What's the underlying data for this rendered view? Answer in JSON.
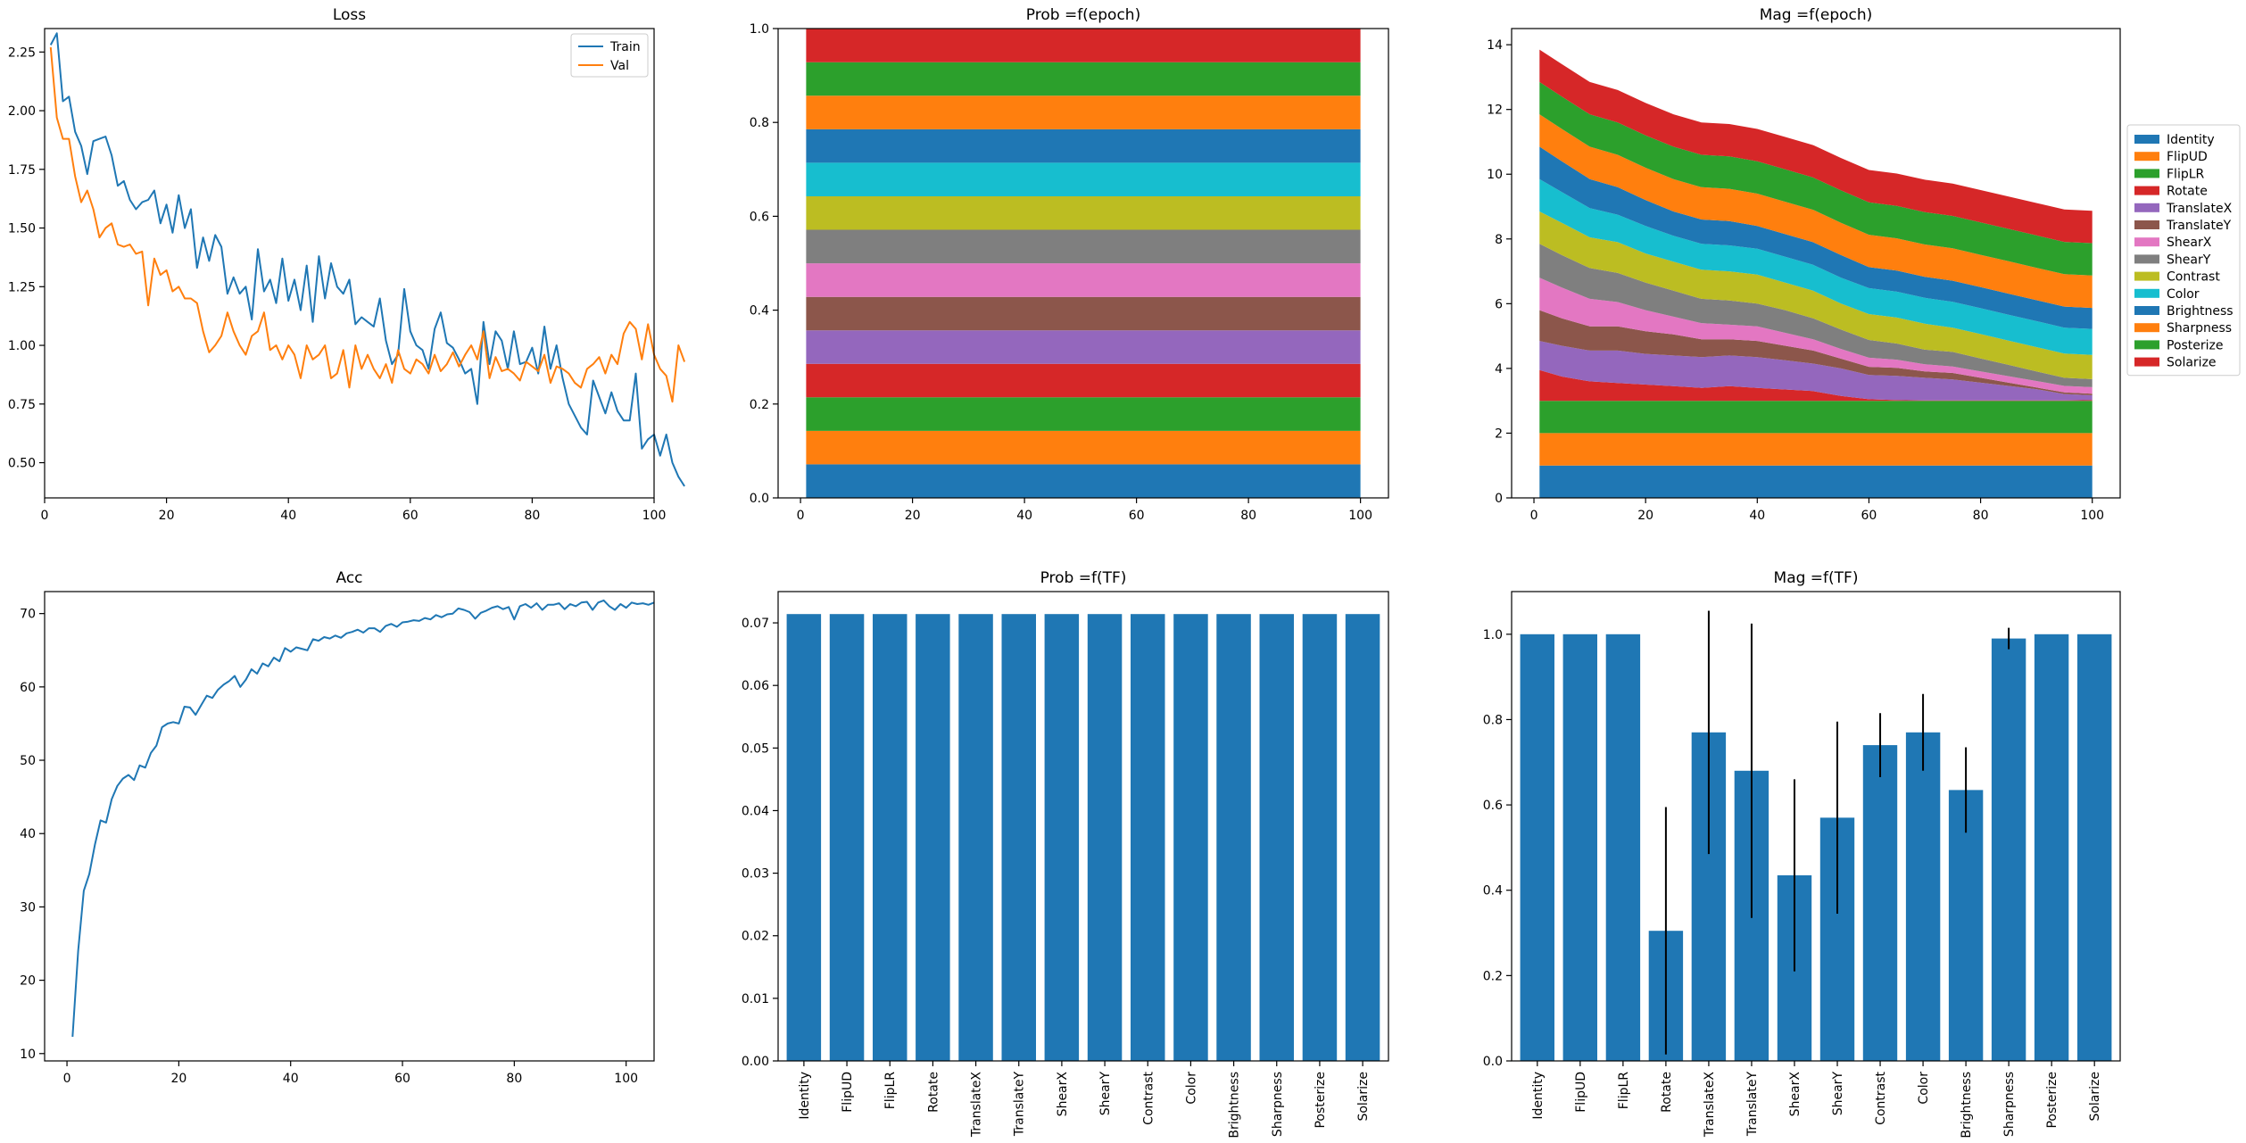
{
  "chart_data": [
    {
      "id": "loss",
      "type": "line",
      "title": "Loss",
      "xlim": [
        0,
        100
      ],
      "ylim": [
        0.35,
        2.35
      ],
      "xticks": [
        0,
        20,
        40,
        60,
        80,
        100
      ],
      "yticks": [
        0.5,
        0.75,
        1.0,
        1.25,
        1.5,
        1.75,
        2.0,
        2.25
      ],
      "yticklabels": [
        "0.50",
        "0.75",
        "1.00",
        "1.25",
        "1.50",
        "1.75",
        "2.00",
        "2.25"
      ],
      "legend": "top-right",
      "series": [
        {
          "name": "Train",
          "color": "#1f77b4",
          "values": [
            2.28,
            2.33,
            2.04,
            2.06,
            1.91,
            1.85,
            1.73,
            1.87,
            1.88,
            1.89,
            1.81,
            1.68,
            1.7,
            1.62,
            1.58,
            1.61,
            1.62,
            1.66,
            1.52,
            1.6,
            1.48,
            1.64,
            1.5,
            1.58,
            1.33,
            1.46,
            1.36,
            1.47,
            1.42,
            1.22,
            1.29,
            1.22,
            1.25,
            1.11,
            1.41,
            1.23,
            1.28,
            1.18,
            1.37,
            1.19,
            1.28,
            1.15,
            1.34,
            1.1,
            1.38,
            1.2,
            1.35,
            1.25,
            1.22,
            1.28,
            1.09,
            1.12,
            1.1,
            1.08,
            1.2,
            1.02,
            0.92,
            0.96,
            1.24,
            1.06,
            1.0,
            0.98,
            0.9,
            1.07,
            1.14,
            1.01,
            0.99,
            0.94,
            0.88,
            0.9,
            0.75,
            1.1,
            0.92,
            1.06,
            1.02,
            0.9,
            1.06,
            0.92,
            0.93,
            0.99,
            0.88,
            1.08,
            0.9,
            1.0,
            0.86,
            0.75,
            0.7,
            0.65,
            0.62,
            0.85,
            0.78,
            0.71,
            0.8,
            0.72,
            0.68,
            0.68,
            0.88,
            0.56,
            0.6,
            0.62,
            0.53,
            0.62,
            0.5,
            0.44,
            0.4
          ]
        },
        {
          "name": "Val",
          "color": "#ff7f0e",
          "values": [
            2.27,
            1.97,
            1.88,
            1.88,
            1.72,
            1.61,
            1.66,
            1.58,
            1.46,
            1.5,
            1.52,
            1.43,
            1.42,
            1.43,
            1.39,
            1.4,
            1.17,
            1.37,
            1.3,
            1.32,
            1.23,
            1.25,
            1.2,
            1.2,
            1.18,
            1.06,
            0.97,
            1.0,
            1.04,
            1.14,
            1.06,
            1.0,
            0.96,
            1.04,
            1.06,
            1.14,
            0.98,
            1.0,
            0.94,
            1.0,
            0.96,
            0.86,
            1.0,
            0.94,
            0.96,
            1.0,
            0.86,
            0.88,
            0.98,
            0.82,
            1.0,
            0.9,
            0.96,
            0.9,
            0.86,
            0.92,
            0.84,
            0.98,
            0.9,
            0.88,
            0.94,
            0.92,
            0.88,
            0.96,
            0.89,
            0.92,
            0.97,
            0.91,
            0.96,
            1.0,
            0.94,
            1.06,
            0.86,
            0.95,
            0.89,
            0.9,
            0.88,
            0.85,
            0.93,
            0.91,
            0.89,
            0.96,
            0.84,
            0.91,
            0.9,
            0.88,
            0.84,
            0.82,
            0.9,
            0.92,
            0.95,
            0.88,
            0.96,
            0.92,
            1.05,
            1.1,
            1.07,
            0.94,
            1.09,
            0.96,
            0.9,
            0.87,
            0.76,
            1.0,
            0.93
          ]
        }
      ]
    },
    {
      "id": "prob_epoch",
      "type": "area",
      "stacked": true,
      "title": "Prob =f(epoch)",
      "x": [
        1,
        100
      ],
      "xlim": [
        -4,
        105
      ],
      "ylim": [
        0,
        1.0
      ],
      "xticks": [
        0,
        20,
        40,
        60,
        80,
        100
      ],
      "yticks": [
        0.0,
        0.2,
        0.4,
        0.6,
        0.8,
        1.0
      ],
      "yticklabels": [
        "0.0",
        "0.2",
        "0.4",
        "0.6",
        "0.8",
        "1.0"
      ],
      "series": [
        {
          "name": "Identity",
          "color": "#1f77b4",
          "values": [
            0.0714,
            0.0714
          ]
        },
        {
          "name": "FlipUD",
          "color": "#ff7f0e",
          "values": [
            0.0714,
            0.0714
          ]
        },
        {
          "name": "FlipLR",
          "color": "#2ca02c",
          "values": [
            0.0714,
            0.0714
          ]
        },
        {
          "name": "Rotate",
          "color": "#d62728",
          "values": [
            0.0714,
            0.0714
          ]
        },
        {
          "name": "TranslateX",
          "color": "#9467bd",
          "values": [
            0.0714,
            0.0714
          ]
        },
        {
          "name": "TranslateY",
          "color": "#8c564b",
          "values": [
            0.0714,
            0.0714
          ]
        },
        {
          "name": "ShearX",
          "color": "#e377c2",
          "values": [
            0.0714,
            0.0714
          ]
        },
        {
          "name": "ShearY",
          "color": "#7f7f7f",
          "values": [
            0.0714,
            0.0714
          ]
        },
        {
          "name": "Contrast",
          "color": "#bcbd22",
          "values": [
            0.0714,
            0.0714
          ]
        },
        {
          "name": "Color",
          "color": "#17becf",
          "values": [
            0.0714,
            0.0714
          ]
        },
        {
          "name": "Brightness",
          "color": "#1f77b4",
          "values": [
            0.0714,
            0.0714
          ]
        },
        {
          "name": "Sharpness",
          "color": "#ff7f0e",
          "values": [
            0.0714,
            0.0714
          ]
        },
        {
          "name": "Posterize",
          "color": "#2ca02c",
          "values": [
            0.0714,
            0.0714
          ]
        },
        {
          "name": "Solarize",
          "color": "#d62728",
          "values": [
            0.0714,
            0.0714
          ]
        }
      ]
    },
    {
      "id": "mag_epoch",
      "type": "area",
      "stacked": true,
      "title": "Mag =f(epoch)",
      "x": [
        1,
        5,
        10,
        15,
        20,
        25,
        30,
        35,
        40,
        45,
        50,
        55,
        60,
        65,
        70,
        75,
        80,
        85,
        90,
        95,
        100
      ],
      "xlim": [
        -4,
        105
      ],
      "ylim": [
        0,
        14.5
      ],
      "xticks": [
        0,
        20,
        40,
        60,
        80,
        100
      ],
      "yticks": [
        0,
        2,
        4,
        6,
        8,
        10,
        12,
        14
      ],
      "yticklabels": [
        "0",
        "2",
        "4",
        "6",
        "8",
        "10",
        "12",
        "14"
      ],
      "legend": "outside-right",
      "series": [
        {
          "name": "Identity",
          "color": "#1f77b4",
          "values": [
            1,
            1,
            1,
            1,
            1,
            1,
            1,
            1,
            1,
            1,
            1,
            1,
            1,
            1,
            1,
            1,
            1,
            1,
            1,
            1,
            1
          ]
        },
        {
          "name": "FlipUD",
          "color": "#ff7f0e",
          "values": [
            1,
            1,
            1,
            1,
            1,
            1,
            1,
            1,
            1,
            1,
            1,
            1,
            1,
            1,
            1,
            1,
            1,
            1,
            1,
            1,
            1
          ]
        },
        {
          "name": "FlipLR",
          "color": "#2ca02c",
          "values": [
            1,
            1,
            1,
            1,
            1,
            1,
            1,
            1,
            1,
            1,
            1,
            1,
            1,
            1,
            1,
            1,
            1,
            1,
            1,
            1,
            1
          ]
        },
        {
          "name": "Rotate",
          "color": "#d62728",
          "values": [
            0.95,
            0.75,
            0.6,
            0.55,
            0.5,
            0.45,
            0.4,
            0.45,
            0.4,
            0.35,
            0.3,
            0.15,
            0.05,
            0.02,
            0.01,
            0.01,
            0.01,
            0.01,
            0.01,
            0.01,
            0.02
          ]
        },
        {
          "name": "TranslateX",
          "color": "#9467bd",
          "values": [
            0.9,
            0.95,
            0.95,
            1.0,
            0.95,
            0.95,
            0.95,
            0.95,
            0.95,
            0.9,
            0.85,
            0.85,
            0.75,
            0.75,
            0.7,
            0.65,
            0.55,
            0.45,
            0.35,
            0.2,
            0.15
          ]
        },
        {
          "name": "TranslateY",
          "color": "#8c564b",
          "values": [
            0.95,
            0.85,
            0.75,
            0.75,
            0.7,
            0.65,
            0.55,
            0.5,
            0.5,
            0.45,
            0.4,
            0.3,
            0.25,
            0.25,
            0.2,
            0.2,
            0.15,
            0.1,
            0.05,
            0.05,
            0.05
          ]
        },
        {
          "name": "ShearX",
          "color": "#e377c2",
          "values": [
            1.0,
            0.95,
            0.85,
            0.75,
            0.65,
            0.55,
            0.5,
            0.45,
            0.45,
            0.4,
            0.35,
            0.3,
            0.28,
            0.25,
            0.22,
            0.2,
            0.2,
            0.2,
            0.2,
            0.2,
            0.2
          ]
        },
        {
          "name": "ShearY",
          "color": "#7f7f7f",
          "values": [
            1.05,
            1.0,
            0.95,
            0.9,
            0.85,
            0.8,
            0.75,
            0.75,
            0.7,
            0.7,
            0.65,
            0.6,
            0.55,
            0.5,
            0.45,
            0.45,
            0.4,
            0.35,
            0.3,
            0.25,
            0.25
          ]
        },
        {
          "name": "Contrast",
          "color": "#bcbd22",
          "values": [
            1.0,
            1.0,
            0.95,
            0.95,
            0.9,
            0.9,
            0.9,
            0.9,
            0.9,
            0.85,
            0.85,
            0.8,
            0.8,
            0.8,
            0.8,
            0.75,
            0.75,
            0.75,
            0.75,
            0.75,
            0.75
          ]
        },
        {
          "name": "Color",
          "color": "#17becf",
          "values": [
            1.0,
            0.95,
            0.9,
            0.85,
            0.85,
            0.8,
            0.8,
            0.8,
            0.8,
            0.8,
            0.8,
            0.8,
            0.8,
            0.8,
            0.8,
            0.8,
            0.8,
            0.8,
            0.8,
            0.8,
            0.8
          ]
        },
        {
          "name": "Brightness",
          "color": "#1f77b4",
          "values": [
            1.0,
            0.95,
            0.9,
            0.85,
            0.8,
            0.75,
            0.75,
            0.75,
            0.7,
            0.7,
            0.7,
            0.7,
            0.65,
            0.65,
            0.65,
            0.65,
            0.65,
            0.65,
            0.65,
            0.65,
            0.65
          ]
        },
        {
          "name": "Sharpness",
          "color": "#ff7f0e",
          "values": [
            1.0,
            1.0,
            1.0,
            1.0,
            1.0,
            1.0,
            1.0,
            1.0,
            1.0,
            1.0,
            1.0,
            1.0,
            1.0,
            1.0,
            1.0,
            1.0,
            1.0,
            1.0,
            1.0,
            1.0,
            1.0
          ]
        },
        {
          "name": "Posterize",
          "color": "#2ca02c",
          "values": [
            1.0,
            1.0,
            1.0,
            1.0,
            1.0,
            1.0,
            1.0,
            1.0,
            1.0,
            1.0,
            1.0,
            1.0,
            1.0,
            1.0,
            1.0,
            1.0,
            1.0,
            1.0,
            1.0,
            1.0,
            1.0
          ]
        },
        {
          "name": "Solarize",
          "color": "#d62728",
          "values": [
            1.0,
            1.0,
            1.0,
            1.0,
            1.0,
            1.0,
            1.0,
            1.0,
            1.0,
            1.0,
            1.0,
            1.0,
            1.0,
            1.0,
            1.0,
            1.0,
            1.0,
            1.0,
            1.0,
            1.0,
            1.0
          ]
        }
      ]
    },
    {
      "id": "acc",
      "type": "line",
      "title": "Acc",
      "xlim": [
        -4,
        105
      ],
      "ylim": [
        9,
        73
      ],
      "xticks": [
        0,
        20,
        40,
        60,
        80,
        100
      ],
      "yticks": [
        10,
        20,
        30,
        40,
        50,
        60,
        70
      ],
      "yticklabels": [
        "10",
        "20",
        "30",
        "40",
        "50",
        "60",
        "70"
      ],
      "series": [
        {
          "name": "",
          "color": "#1f77b4",
          "values": [
            12.3,
            24.0,
            32.2,
            34.5,
            38.5,
            41.8,
            41.5,
            44.7,
            46.5,
            47.5,
            48.0,
            47.3,
            49.3,
            49.0,
            51.0,
            52.0,
            54.5,
            55.0,
            55.2,
            55.0,
            57.3,
            57.2,
            56.2,
            57.5,
            58.8,
            58.5,
            59.6,
            60.3,
            60.8,
            61.5,
            60.0,
            61.0,
            62.4,
            61.8,
            63.2,
            62.8,
            64.0,
            63.5,
            65.3,
            64.8,
            65.4,
            65.2,
            65.0,
            66.5,
            66.3,
            66.8,
            66.6,
            67.0,
            66.7,
            67.3,
            67.5,
            67.8,
            67.4,
            68.0,
            68.0,
            67.5,
            68.3,
            68.6,
            68.2,
            68.8,
            68.9,
            69.1,
            69.0,
            69.4,
            69.2,
            69.8,
            69.5,
            69.9,
            70.0,
            70.7,
            70.5,
            70.2,
            69.3,
            70.1,
            70.4,
            70.8,
            71.0,
            70.6,
            70.9,
            69.2,
            71.0,
            71.3,
            70.8,
            71.4,
            70.5,
            71.2,
            71.2,
            71.4,
            70.6,
            71.3,
            71.0,
            71.5,
            71.6,
            70.5,
            71.5,
            71.8,
            71.0,
            70.5,
            71.3,
            70.8,
            71.5,
            71.3,
            71.4,
            71.2,
            71.5
          ]
        }
      ]
    },
    {
      "id": "prob_tf",
      "type": "bar",
      "title": "Prob =f(TF)",
      "categories": [
        "Identity",
        "FlipUD",
        "FlipLR",
        "Rotate",
        "TranslateX",
        "TranslateY",
        "ShearX",
        "ShearY",
        "Contrast",
        "Color",
        "Brightness",
        "Sharpness",
        "Posterize",
        "Solarize"
      ],
      "values": [
        0.0714,
        0.0714,
        0.0714,
        0.0714,
        0.0714,
        0.0714,
        0.0714,
        0.0714,
        0.0714,
        0.0714,
        0.0714,
        0.0714,
        0.0714,
        0.0714
      ],
      "color": "#1f77b4",
      "ylim": [
        0,
        0.075
      ],
      "yticks": [
        0.0,
        0.01,
        0.02,
        0.03,
        0.04,
        0.05,
        0.06,
        0.07
      ],
      "yticklabels": [
        "0.00",
        "0.01",
        "0.02",
        "0.03",
        "0.04",
        "0.05",
        "0.06",
        "0.07"
      ]
    },
    {
      "id": "mag_tf",
      "type": "bar",
      "title": "Mag =f(TF)",
      "categories": [
        "Identity",
        "FlipUD",
        "FlipLR",
        "Rotate",
        "TranslateX",
        "TranslateY",
        "ShearX",
        "ShearY",
        "Contrast",
        "Color",
        "Brightness",
        "Sharpness",
        "Posterize",
        "Solarize"
      ],
      "values": [
        1.0,
        1.0,
        1.0,
        0.305,
        0.77,
        0.68,
        0.435,
        0.57,
        0.74,
        0.77,
        0.635,
        0.99,
        1.0,
        1.0
      ],
      "errors": [
        0,
        0,
        0,
        0.29,
        0.285,
        0.345,
        0.225,
        0.225,
        0.075,
        0.09,
        0.1,
        0.025,
        0,
        0
      ],
      "color": "#1f77b4",
      "ylim": [
        0,
        1.1
      ],
      "yticks": [
        0.0,
        0.2,
        0.4,
        0.6,
        0.8,
        1.0
      ],
      "yticklabels": [
        "0.0",
        "0.2",
        "0.4",
        "0.6",
        "0.8",
        "1.0"
      ]
    }
  ]
}
